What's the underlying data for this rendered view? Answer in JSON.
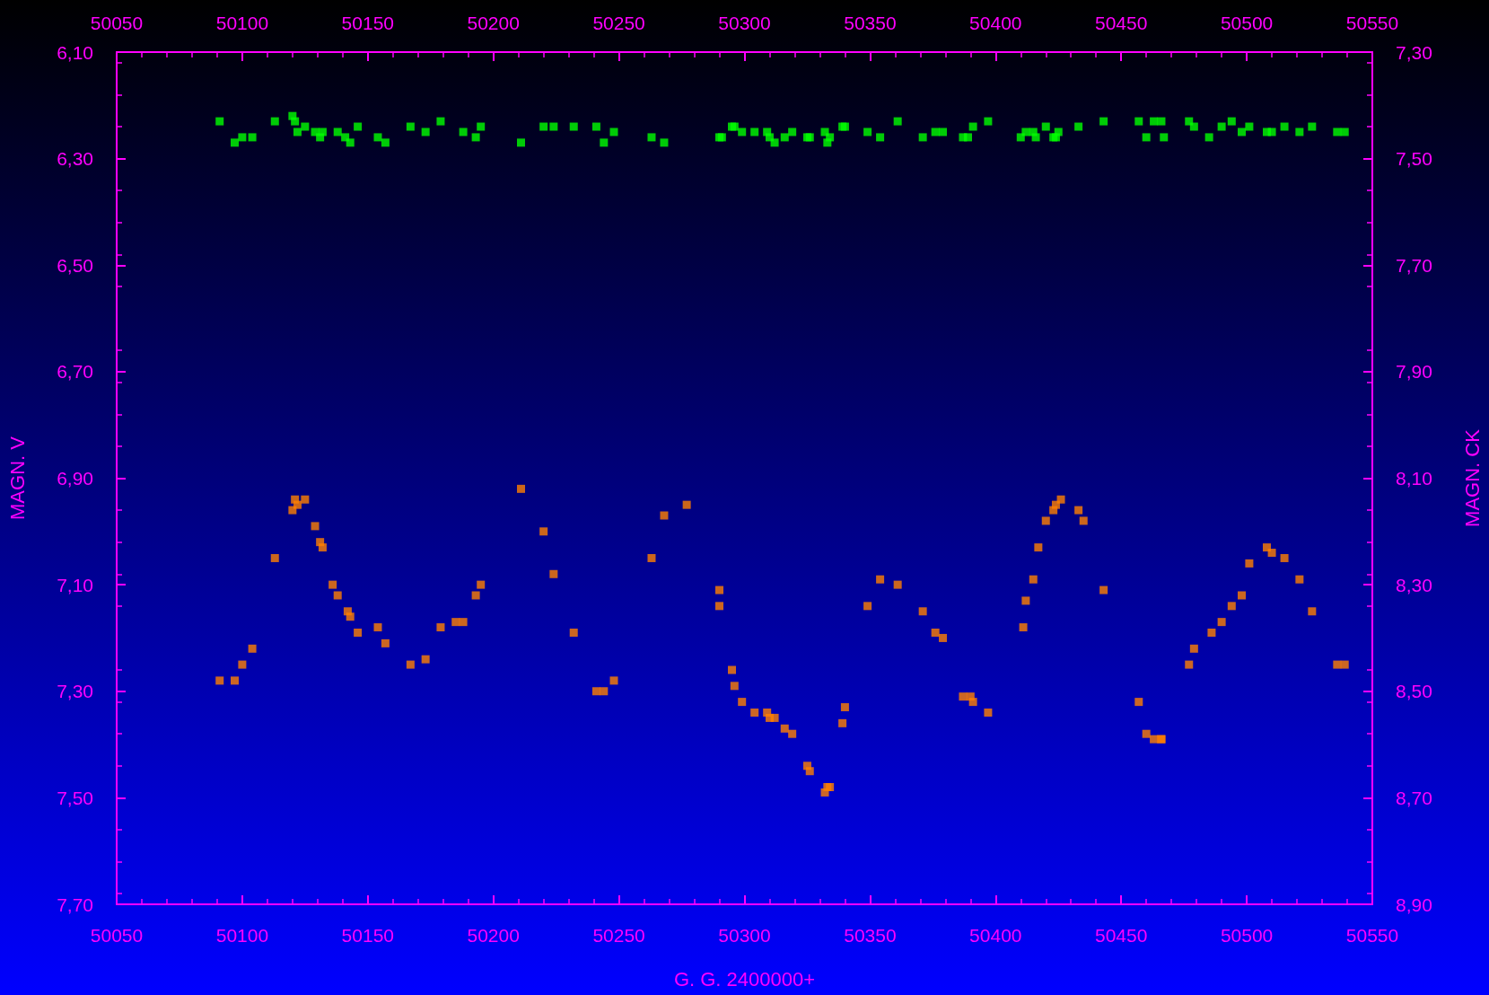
{
  "chart_data": {
    "type": "scatter",
    "xlabel": "G. G. 2400000+",
    "ylabel": "MAGN. V",
    "y2label": "MAGN. CK",
    "xlim": [
      50050,
      50550
    ],
    "xticks": [
      50050,
      50100,
      50150,
      50200,
      50250,
      50300,
      50350,
      50400,
      50450,
      50500,
      50550
    ],
    "x2lim": [
      50050,
      50550
    ],
    "x2ticks": [
      50050,
      50100,
      50150,
      50200,
      50250,
      50300,
      50350,
      50400,
      50450,
      50500,
      50550
    ],
    "ylim": [
      7.7,
      6.1
    ],
    "yticks": [
      {
        "value": 6.1,
        "label": "6,10"
      },
      {
        "value": 6.3,
        "label": "6,30"
      },
      {
        "value": 6.5,
        "label": "6,50"
      },
      {
        "value": 6.7,
        "label": "6,70"
      },
      {
        "value": 6.9,
        "label": "6,90"
      },
      {
        "value": 7.1,
        "label": "7,10"
      },
      {
        "value": 7.3,
        "label": "7,30"
      },
      {
        "value": 7.5,
        "label": "7,50"
      },
      {
        "value": 7.7,
        "label": "7,70"
      }
    ],
    "y2lim": [
      8.9,
      7.3
    ],
    "y2ticks": [
      {
        "value": 7.3,
        "label": "7,30"
      },
      {
        "value": 7.5,
        "label": "7,50"
      },
      {
        "value": 7.7,
        "label": "7,70"
      },
      {
        "value": 7.9,
        "label": "7,90"
      },
      {
        "value": 8.1,
        "label": "8,10"
      },
      {
        "value": 8.3,
        "label": "8,30"
      },
      {
        "value": 8.5,
        "label": "8,50"
      },
      {
        "value": 8.7,
        "label": "8,70"
      },
      {
        "value": 8.9,
        "label": "8,90"
      }
    ],
    "grid": false,
    "marker": "square",
    "series": [
      {
        "color": "#ff8000",
        "x": [
          50091,
          50097,
          50100,
          50104,
          50113,
          50120,
          50121,
          50122,
          50125,
          50129,
          50131,
          50132,
          50136,
          50138,
          50142,
          50143,
          50146,
          50154,
          50157,
          50167,
          50173,
          50179,
          50185,
          50188,
          50193,
          50195,
          50211,
          50220,
          50224,
          50232,
          50241,
          50244,
          50248,
          50263,
          50268,
          50277,
          50290,
          50290,
          50295,
          50296,
          50299,
          50304,
          50309,
          50310,
          50312,
          50316,
          50319,
          50325,
          50326,
          50332,
          50333,
          50334,
          50339,
          50340,
          50349,
          50354,
          50361,
          50371,
          50376,
          50379,
          50387,
          50390,
          50391,
          50397,
          50411,
          50412,
          50415,
          50417,
          50420,
          50423,
          50424,
          50426,
          50433,
          50435,
          50443,
          50457,
          50460,
          50463,
          50466,
          50466,
          50477,
          50479,
          50486,
          50490,
          50494,
          50498,
          50501,
          50508,
          50510,
          50515,
          50521,
          50526,
          50536,
          50539
        ],
        "values": [
          7.28,
          7.28,
          7.25,
          7.22,
          7.05,
          6.96,
          6.94,
          6.95,
          6.94,
          6.99,
          7.02,
          7.03,
          7.1,
          7.12,
          7.15,
          7.16,
          7.19,
          7.18,
          7.21,
          7.25,
          7.24,
          7.18,
          7.17,
          7.17,
          7.12,
          7.1,
          6.92,
          7.0,
          7.08,
          7.19,
          7.3,
          7.3,
          7.28,
          7.05,
          6.97,
          6.95,
          7.11,
          7.14,
          7.26,
          7.29,
          7.32,
          7.34,
          7.34,
          7.35,
          7.35,
          7.37,
          7.38,
          7.44,
          7.45,
          7.49,
          7.48,
          7.48,
          7.36,
          7.33,
          7.14,
          7.09,
          7.1,
          7.15,
          7.19,
          7.2,
          7.31,
          7.31,
          7.32,
          7.34,
          7.18,
          7.13,
          7.09,
          7.03,
          6.98,
          6.96,
          6.95,
          6.94,
          6.96,
          6.98,
          7.11,
          7.32,
          7.38,
          7.39,
          7.39,
          7.39,
          7.25,
          7.22,
          7.19,
          7.17,
          7.14,
          7.12,
          7.06,
          7.03,
          7.04,
          7.05,
          7.09,
          7.15,
          7.25,
          7.25
        ]
      },
      {
        "color": "#00ff00",
        "axis": "y2",
        "x": [
          50091,
          50097,
          50100,
          50104,
          50113,
          50120,
          50121,
          50122,
          50125,
          50129,
          50131,
          50132,
          50138,
          50141,
          50143,
          50146,
          50154,
          50157,
          50167,
          50173,
          50179,
          50188,
          50193,
          50195,
          50211,
          50220,
          50224,
          50232,
          50241,
          50244,
          50248,
          50263,
          50268,
          50290,
          50291,
          50295,
          50296,
          50299,
          50304,
          50309,
          50310,
          50312,
          50316,
          50319,
          50325,
          50326,
          50332,
          50333,
          50334,
          50339,
          50340,
          50349,
          50354,
          50361,
          50371,
          50376,
          50379,
          50387,
          50389,
          50391,
          50397,
          50410,
          50412,
          50415,
          50416,
          50420,
          50423,
          50424,
          50425,
          50433,
          50443,
          50457,
          50460,
          50463,
          50466,
          50467,
          50477,
          50479,
          50485,
          50490,
          50494,
          50498,
          50501,
          50508,
          50510,
          50515,
          50521,
          50526,
          50536,
          50539
        ],
        "values": [
          7.43,
          7.47,
          7.46,
          7.46,
          7.43,
          7.42,
          7.43,
          7.45,
          7.44,
          7.45,
          7.46,
          7.45,
          7.45,
          7.46,
          7.47,
          7.44,
          7.46,
          7.47,
          7.44,
          7.45,
          7.43,
          7.45,
          7.46,
          7.44,
          7.47,
          7.44,
          7.44,
          7.44,
          7.44,
          7.47,
          7.45,
          7.46,
          7.47,
          7.46,
          7.46,
          7.44,
          7.44,
          7.45,
          7.45,
          7.45,
          7.46,
          7.47,
          7.46,
          7.45,
          7.46,
          7.46,
          7.45,
          7.47,
          7.46,
          7.44,
          7.44,
          7.45,
          7.46,
          7.43,
          7.46,
          7.45,
          7.45,
          7.46,
          7.46,
          7.44,
          7.43,
          7.46,
          7.45,
          7.45,
          7.46,
          7.44,
          7.46,
          7.46,
          7.45,
          7.44,
          7.43,
          7.43,
          7.46,
          7.43,
          7.43,
          7.46,
          7.43,
          7.44,
          7.46,
          7.44,
          7.43,
          7.45,
          7.44,
          7.45,
          7.45,
          7.44,
          7.45,
          7.44,
          7.45,
          7.45
        ]
      }
    ]
  }
}
